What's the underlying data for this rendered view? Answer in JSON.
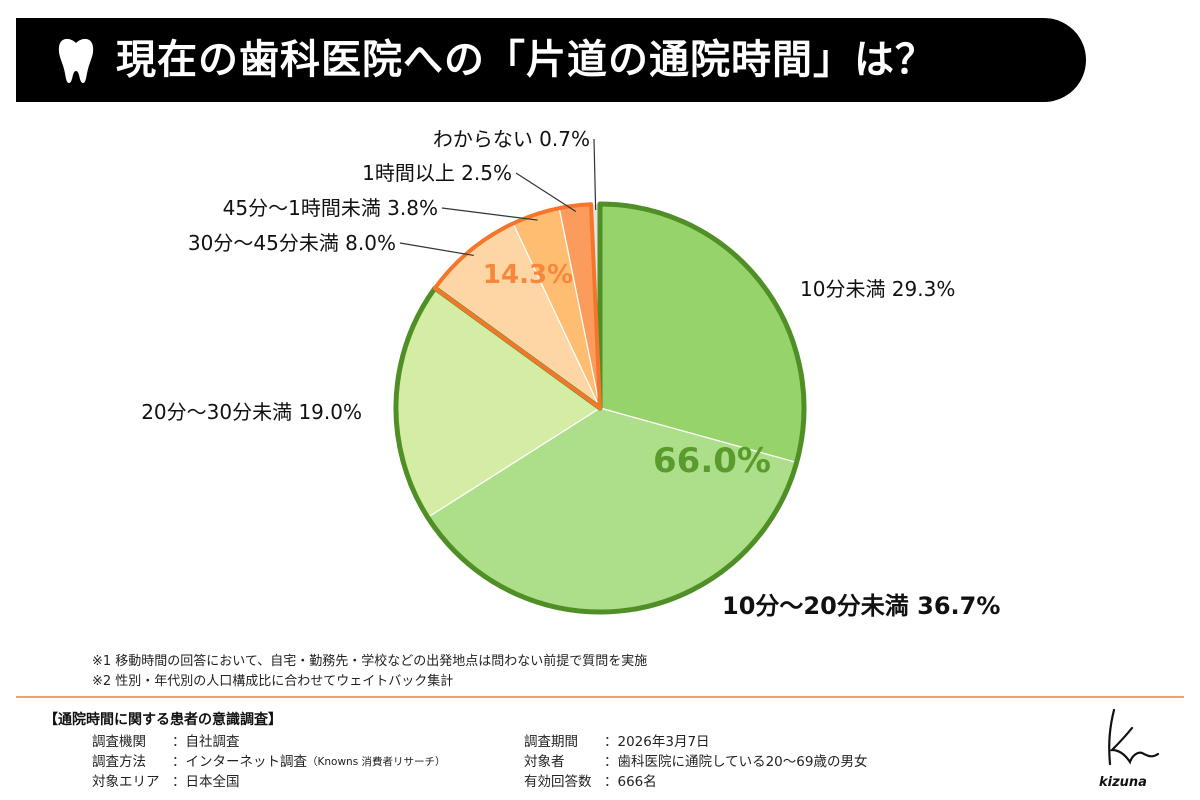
{
  "header": {
    "title": "現在の歯科医院への「片道の通院時間」は？"
  },
  "chart_data": {
    "type": "pie",
    "title": "現在の歯科医院への「片道の通院時間」は？",
    "slices": [
      {
        "label": "10分未満",
        "value": 29.3,
        "color": "#97d36b"
      },
      {
        "label": "10分～20分未満",
        "value": 36.7,
        "color": "#addf8a"
      },
      {
        "label": "20分～30分未満",
        "value": 19.0,
        "color": "#d4eca3"
      },
      {
        "label": "30分～45分未満",
        "value": 8.0,
        "color": "#fed6a6"
      },
      {
        "label": "45分～1時間未満",
        "value": 3.8,
        "color": "#ffbd72"
      },
      {
        "label": "1時間以上",
        "value": 2.5,
        "color": "#fb9b5c"
      },
      {
        "label": "わからない",
        "value": 0.7,
        "color": "#e3e3e3"
      }
    ],
    "group_labels": [
      {
        "label": "66.0%",
        "color": "#5a9b2e"
      },
      {
        "label": "14.3%",
        "color": "#f5883a"
      }
    ],
    "group_outline_colors": {
      "green": "#4f8f25",
      "orange": "#f5762a"
    }
  },
  "notes": [
    "※1 移動時間の回答において、自宅・勤務先・学校などの出発地点は問わない前提で質問を実施",
    "※2 性別・年代別の人口構成比に合わせてウェイトバック集計"
  ],
  "survey": {
    "heading": "【通院時間に関する患者の意識調査】",
    "left": [
      {
        "key": "調査機関",
        "value": "：自社調査"
      },
      {
        "key": "調査方法",
        "value": "：インターネット調査",
        "small": "（Knowns 消費者リサーチ）"
      },
      {
        "key": "対象エリア",
        "value": "：日本全国"
      }
    ],
    "right": [
      {
        "key": "調査期間",
        "value": "：2026年3月7日"
      },
      {
        "key": "対象者",
        "value": "：歯科医院に通院している20～69歳の男女"
      },
      {
        "key": "有効回答数",
        "value": "：666名"
      }
    ]
  },
  "brand": {
    "name": "kizuna"
  },
  "icons": {
    "title_icon": "tooth-icon",
    "logo": "kizuna-signature-logo"
  }
}
